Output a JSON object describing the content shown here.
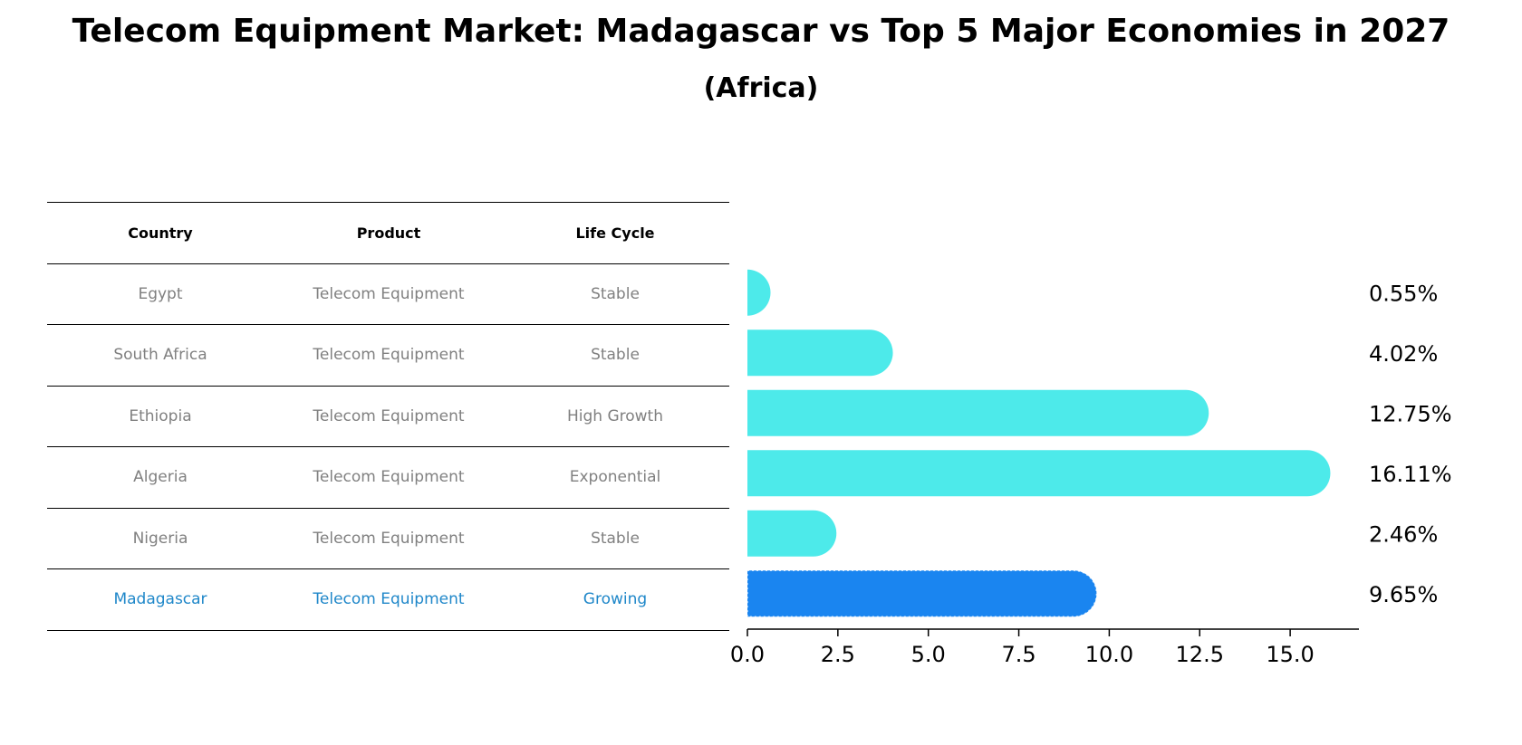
{
  "title": "Telecom Equipment Market: Madagascar vs Top 5 Major Economies in 2027",
  "subtitle": "(Africa)",
  "table": {
    "headers": [
      "Country",
      "Product",
      "Life Cycle"
    ],
    "rows": [
      {
        "country": "Egypt",
        "product": "Telecom Equipment",
        "life_cycle": "Stable",
        "highlight": false
      },
      {
        "country": "South Africa",
        "product": "Telecom Equipment",
        "life_cycle": "Stable",
        "highlight": false
      },
      {
        "country": "Ethiopia",
        "product": "Telecom Equipment",
        "life_cycle": "High Growth",
        "highlight": false
      },
      {
        "country": "Algeria",
        "product": "Telecom Equipment",
        "life_cycle": "Exponential",
        "highlight": false
      },
      {
        "country": "Nigeria",
        "product": "Telecom Equipment",
        "life_cycle": "Stable",
        "highlight": false
      },
      {
        "country": "Madagascar",
        "product": "Telecom Equipment",
        "life_cycle": "Growing",
        "highlight": true
      }
    ],
    "text_color": "#808080",
    "highlight_text_color": "#1f87c9"
  },
  "chart_data": {
    "type": "bar",
    "orientation": "horizontal",
    "categories": [
      "Egypt",
      "South Africa",
      "Ethiopia",
      "Algeria",
      "Nigeria",
      "Madagascar"
    ],
    "values": [
      0.55,
      4.02,
      12.75,
      16.11,
      2.46,
      9.65
    ],
    "value_labels": [
      "0.55%",
      "4.02%",
      "12.75%",
      "16.11%",
      "2.46%",
      "9.65%"
    ],
    "xlim": [
      0,
      16.9
    ],
    "xticks": [
      "0.0",
      "2.5",
      "5.0",
      "7.5",
      "10.0",
      "12.5",
      "15.0"
    ],
    "bar_color": "#4deaea",
    "highlight_color": "#1a85f0",
    "highlight_index": 5,
    "grid": false
  }
}
